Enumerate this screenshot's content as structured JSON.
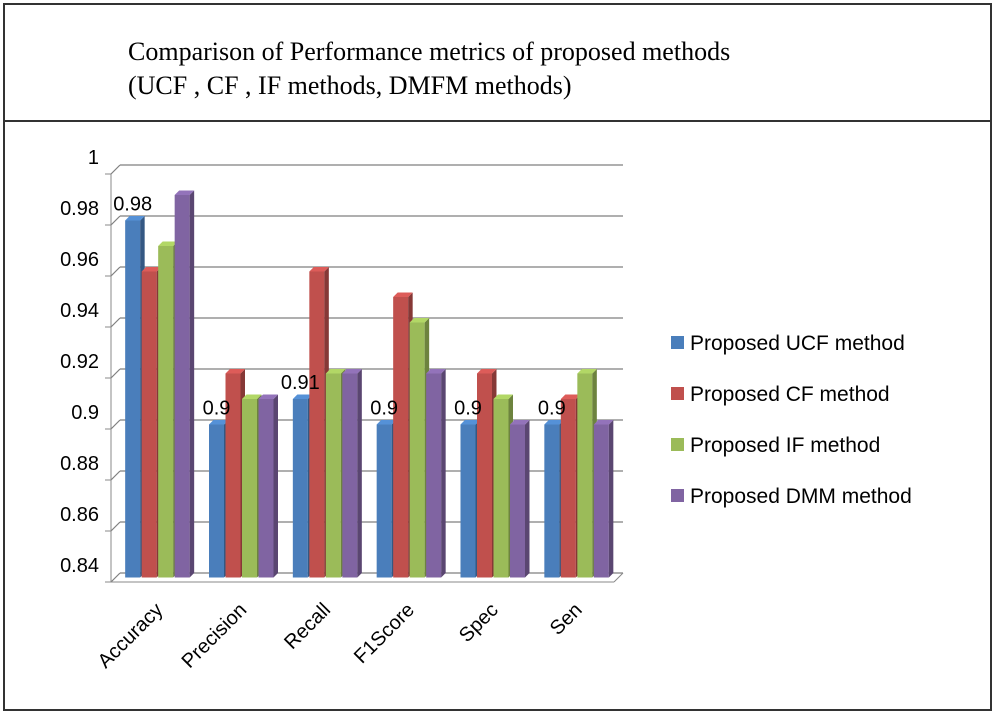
{
  "chart_data": {
    "type": "bar",
    "title_lines": [
      "Comparison of Performance metrics of proposed methods",
      "(UCF , CF , IF methods, DMFM methods)"
    ],
    "categories": [
      "Accuracy",
      "Precision",
      "Recall",
      "F1Score",
      "Spec",
      "Sen"
    ],
    "series": [
      {
        "name": "Proposed UCF method",
        "color": "#4a7ebb",
        "values": [
          0.98,
          0.9,
          0.91,
          0.9,
          0.9,
          0.9
        ]
      },
      {
        "name": "Proposed CF method",
        "color": "#c0504d",
        "values": [
          0.96,
          0.92,
          0.96,
          0.95,
          0.92,
          0.91
        ]
      },
      {
        "name": "Proposed IF method",
        "color": "#9bbb59",
        "values": [
          0.97,
          0.91,
          0.92,
          0.94,
          0.91,
          0.92
        ]
      },
      {
        "name": "Proposed DMM method",
        "color": "#8064a2",
        "values": [
          0.99,
          0.91,
          0.92,
          0.92,
          0.9,
          0.9
        ]
      }
    ],
    "data_labels": [
      {
        "category_index": 0,
        "series_index": 0,
        "text": "0.98"
      },
      {
        "category_index": 1,
        "series_index": 0,
        "text": "0.9"
      },
      {
        "category_index": 2,
        "series_index": 0,
        "text": "0.91"
      },
      {
        "category_index": 3,
        "series_index": 0,
        "text": "0.9"
      },
      {
        "category_index": 4,
        "series_index": 0,
        "text": "0.9"
      },
      {
        "category_index": 5,
        "series_index": 0,
        "text": "0.9"
      }
    ],
    "y_ticks": [
      "0.84",
      "0.86",
      "0.88",
      "0.9",
      "0.92",
      "0.94",
      "0.96",
      "0.98",
      "1"
    ],
    "ylim": [
      0.84,
      1.0
    ],
    "grid": true,
    "legend_position": "right",
    "xlabel": "",
    "ylabel": ""
  }
}
